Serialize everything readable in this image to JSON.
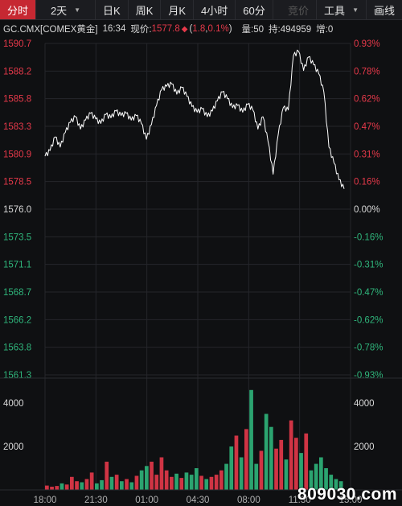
{
  "toolbar": {
    "tabs": [
      {
        "label": "分时",
        "active": true
      },
      {
        "label": "2天",
        "caret": true
      },
      {
        "label": "日K"
      },
      {
        "label": "周K"
      },
      {
        "label": "月K"
      },
      {
        "label": "4小时"
      },
      {
        "label": "60分"
      }
    ],
    "compare_label": "竞价",
    "tools_label": "工具",
    "draw_label": "画线"
  },
  "info": {
    "symbol": "GC.CMX[COMEX黄金]",
    "time": "16:34",
    "price_label": "现价:",
    "price": "1577.8",
    "change": "1.8",
    "change_pct": "0.1%",
    "volume": "量:50",
    "open_interest": "持:494959",
    "increase": "增:0"
  },
  "watermark": "809030.com",
  "colors": {
    "up": "#e6394a",
    "down": "#2fb57b",
    "line": "#ffffff",
    "vol_up": "#e6394a",
    "vol_down": "#2fb57b"
  },
  "chart_data": [
    {
      "type": "line",
      "title": "",
      "y_left_ticks": [
        "1590.7",
        "1588.2",
        "1585.8",
        "1583.3",
        "1580.9",
        "1578.5",
        "1576.0",
        "1573.5",
        "1571.1",
        "1568.7",
        "1566.2",
        "1563.8",
        "1561.3"
      ],
      "y_right_ticks": [
        "0.93%",
        "0.78%",
        "0.62%",
        "0.47%",
        "0.31%",
        "0.16%",
        "0.00%",
        "-0.16%",
        "-0.31%",
        "-0.47%",
        "-0.62%",
        "-0.78%",
        "-0.93%"
      ],
      "x_ticks": [
        "18:00",
        "21:30",
        "01:00",
        "04:30",
        "08:00",
        "11:30",
        "15:00"
      ],
      "ylim": [
        1561.3,
        1590.7
      ],
      "base_price": 1576.0,
      "series": [
        {
          "values": [
            1580.7,
            1581.2,
            1582.4,
            1581.5,
            1582.8,
            1583.7,
            1584.2,
            1583.1,
            1583.9,
            1584.5,
            1584.0,
            1583.6,
            1584.4,
            1584.1,
            1584.7,
            1584.3,
            1584.5,
            1583.9,
            1584.3,
            1583.6,
            1582.2,
            1583.5,
            1585.2,
            1586.6,
            1586.9,
            1587.1,
            1586.2,
            1586.8,
            1586.0,
            1585.1,
            1584.6,
            1584.9,
            1584.2,
            1584.7,
            1585.6,
            1586.4,
            1585.8,
            1585.0,
            1585.2,
            1584.6,
            1585.3,
            1584.8,
            1583.1,
            1584.2,
            1582.0,
            1579.1,
            1582.6,
            1585.0,
            1584.8,
            1589.6,
            1590.0,
            1588.3,
            1589.5,
            1588.8,
            1588.0,
            1586.4,
            1581.5,
            1580.1,
            1578.6,
            1577.8
          ]
        }
      ]
    },
    {
      "type": "bar",
      "title": "",
      "y_ticks": [
        "4000",
        "2000"
      ],
      "ylim": [
        0,
        5000
      ],
      "series": [
        {
          "values": [
            200,
            150,
            180,
            300,
            250,
            600,
            400,
            350,
            500,
            800,
            300,
            450,
            1300,
            600,
            700,
            400,
            500,
            350,
            650,
            900,
            1100,
            1300,
            700,
            1500,
            900,
            600,
            750,
            550,
            800,
            700,
            1000,
            650,
            500,
            600,
            700,
            900,
            1200,
            2000,
            2500,
            1500,
            2800,
            4600,
            1200,
            1800,
            3500,
            2900,
            1900,
            2300,
            1400,
            3200,
            2400,
            1700,
            2600,
            900,
            1200,
            1500,
            1000,
            700,
            500,
            400
          ]
        }
      ]
    }
  ]
}
